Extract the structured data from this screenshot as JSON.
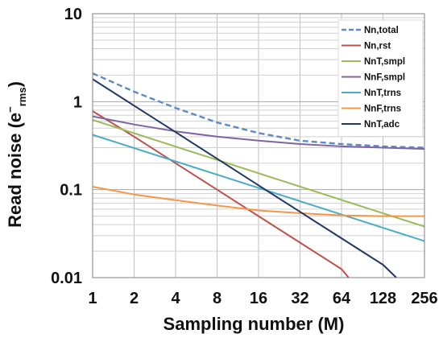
{
  "chart_data": {
    "type": "line",
    "xscale": "log2",
    "yscale": "log10",
    "xlim": [
      1,
      256
    ],
    "ylim": [
      0.01,
      10
    ],
    "grid": true,
    "legend_position": "top-right",
    "xlabel": "Sampling number (M)",
    "ylabel_main": "Read noise (e",
    "ylabel_sup": "−",
    "ylabel_sub": "rms",
    "ylabel_close": ")",
    "xticks": [
      "1",
      "2",
      "4",
      "8",
      "16",
      "32",
      "64",
      "128",
      "256"
    ],
    "yticks": [
      "10",
      "1",
      "0.1",
      "0.01"
    ],
    "series": [
      {
        "name": "Nn,total",
        "color": "#5b8ac6",
        "dashed": true,
        "x": [
          1,
          2,
          4,
          8,
          16,
          32,
          64,
          128,
          256
        ],
        "y": [
          2.1,
          1.3,
          0.85,
          0.58,
          0.44,
          0.36,
          0.33,
          0.31,
          0.3
        ]
      },
      {
        "name": "Nn,rst",
        "color": "#c0504d",
        "dashed": false,
        "x": [
          1,
          2,
          4,
          8,
          16,
          32,
          64,
          72
        ],
        "y": [
          0.78,
          0.4,
          0.2,
          0.1,
          0.05,
          0.025,
          0.0125,
          0.01
        ]
      },
      {
        "name": "NnT,smpl",
        "color": "#9bbb59",
        "dashed": false,
        "x": [
          1,
          256
        ],
        "y": [
          0.62,
          0.038
        ]
      },
      {
        "name": "NnF,smpl",
        "color": "#8064a2",
        "dashed": false,
        "x": [
          1,
          2,
          4,
          8,
          16,
          32,
          64,
          128,
          256
        ],
        "y": [
          0.68,
          0.55,
          0.46,
          0.4,
          0.36,
          0.33,
          0.31,
          0.3,
          0.29
        ]
      },
      {
        "name": "NnT,trns",
        "color": "#4bacc6",
        "dashed": false,
        "x": [
          1,
          256
        ],
        "y": [
          0.42,
          0.026
        ]
      },
      {
        "name": "NnF,trns",
        "color": "#f79646",
        "dashed": false,
        "x": [
          1,
          2,
          4,
          8,
          16,
          32,
          64,
          128,
          256
        ],
        "y": [
          0.108,
          0.088,
          0.076,
          0.066,
          0.058,
          0.054,
          0.051,
          0.05,
          0.05
        ]
      },
      {
        "name": "NnT,adc",
        "color": "#1f3864",
        "dashed": false,
        "x": [
          1,
          2,
          4,
          8,
          16,
          32,
          64,
          128,
          160
        ],
        "y": [
          1.8,
          0.9,
          0.45,
          0.225,
          0.112,
          0.056,
          0.028,
          0.014,
          0.01
        ]
      }
    ]
  }
}
